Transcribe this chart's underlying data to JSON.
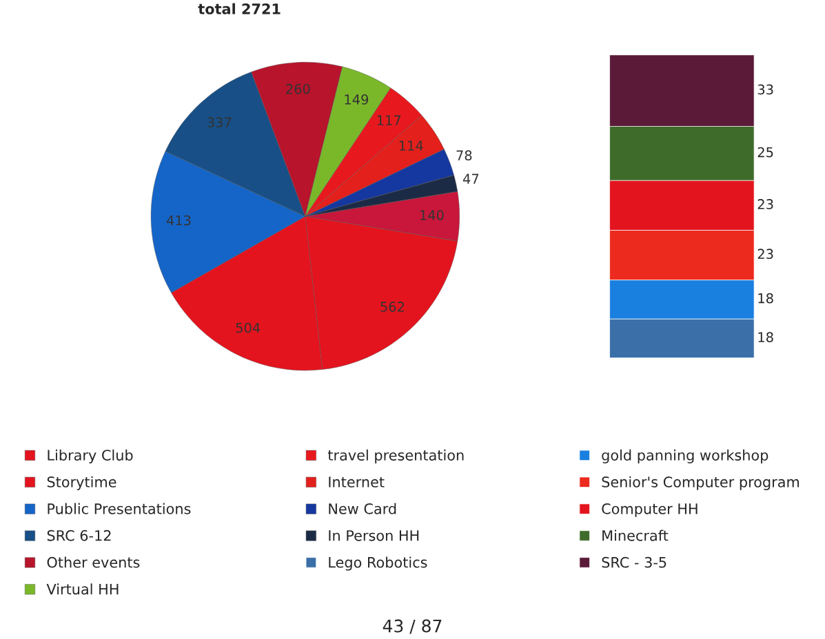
{
  "chart_data": [
    {
      "type": "pie",
      "title": "total 2721",
      "categories": [
        null,
        "Library Club",
        "Storytime",
        "Public Presentations",
        "SRC 6-12",
        "Other events",
        "Virtual HH",
        "travel presentation",
        "Internet",
        "New Card",
        "In Person HH"
      ],
      "values": [
        140,
        562,
        504,
        413,
        337,
        260,
        149,
        117,
        114,
        78,
        47
      ],
      "colors": [
        "#c8173a",
        "#e3141e",
        "#e3141e",
        "#1565c8",
        "#174f86",
        "#b8142c",
        "#7ab82a",
        "#e8191e",
        "#e3201c",
        "#1538a0",
        "#1c2b45"
      ],
      "data_labels": true,
      "legend": "bottom",
      "annotations": [
        "43 / 87"
      ]
    },
    {
      "type": "bar",
      "stacked": true,
      "categories": [
        null
      ],
      "data_labels": true,
      "legend": "bottom",
      "series": [
        {
          "name": "Lego Robotics",
          "color": "#3a6fa8",
          "values": [
            18
          ]
        },
        {
          "name": "gold panning workshop",
          "color": "#1a80e0",
          "values": [
            18
          ]
        },
        {
          "name": "Senior's Computer program",
          "color": "#ec2a1e",
          "values": [
            23
          ]
        },
        {
          "name": "Computer HH",
          "color": "#e3141e",
          "values": [
            23
          ]
        },
        {
          "name": "Minecraft",
          "color": "#3f6b2a",
          "values": [
            25
          ]
        },
        {
          "name": "SRC - 3-5",
          "color": "#5a1a38",
          "values": [
            33
          ]
        }
      ]
    }
  ]
}
